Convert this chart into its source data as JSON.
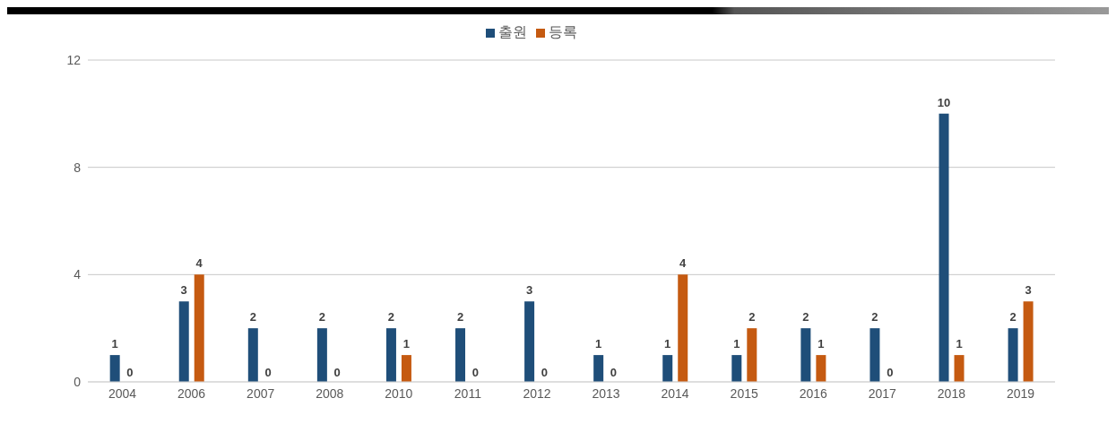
{
  "chart_data": {
    "type": "bar",
    "categories": [
      "2004",
      "2006",
      "2007",
      "2008",
      "2010",
      "2011",
      "2012",
      "2013",
      "2014",
      "2015",
      "2016",
      "2017",
      "2018",
      "2019"
    ],
    "series": [
      {
        "name": "출원",
        "color": "#1f4e79",
        "values": [
          1,
          3,
          2,
          2,
          2,
          2,
          3,
          1,
          1,
          1,
          2,
          2,
          10,
          2
        ]
      },
      {
        "name": "등록",
        "color": "#c55a11",
        "values": [
          0,
          4,
          0,
          0,
          1,
          0,
          0,
          0,
          4,
          2,
          1,
          0,
          1,
          3
        ]
      }
    ],
    "ylim": [
      0,
      12
    ],
    "yticks": [
      0,
      4,
      8,
      12
    ],
    "grid": "y",
    "legend": "top",
    "data_labels": true
  }
}
